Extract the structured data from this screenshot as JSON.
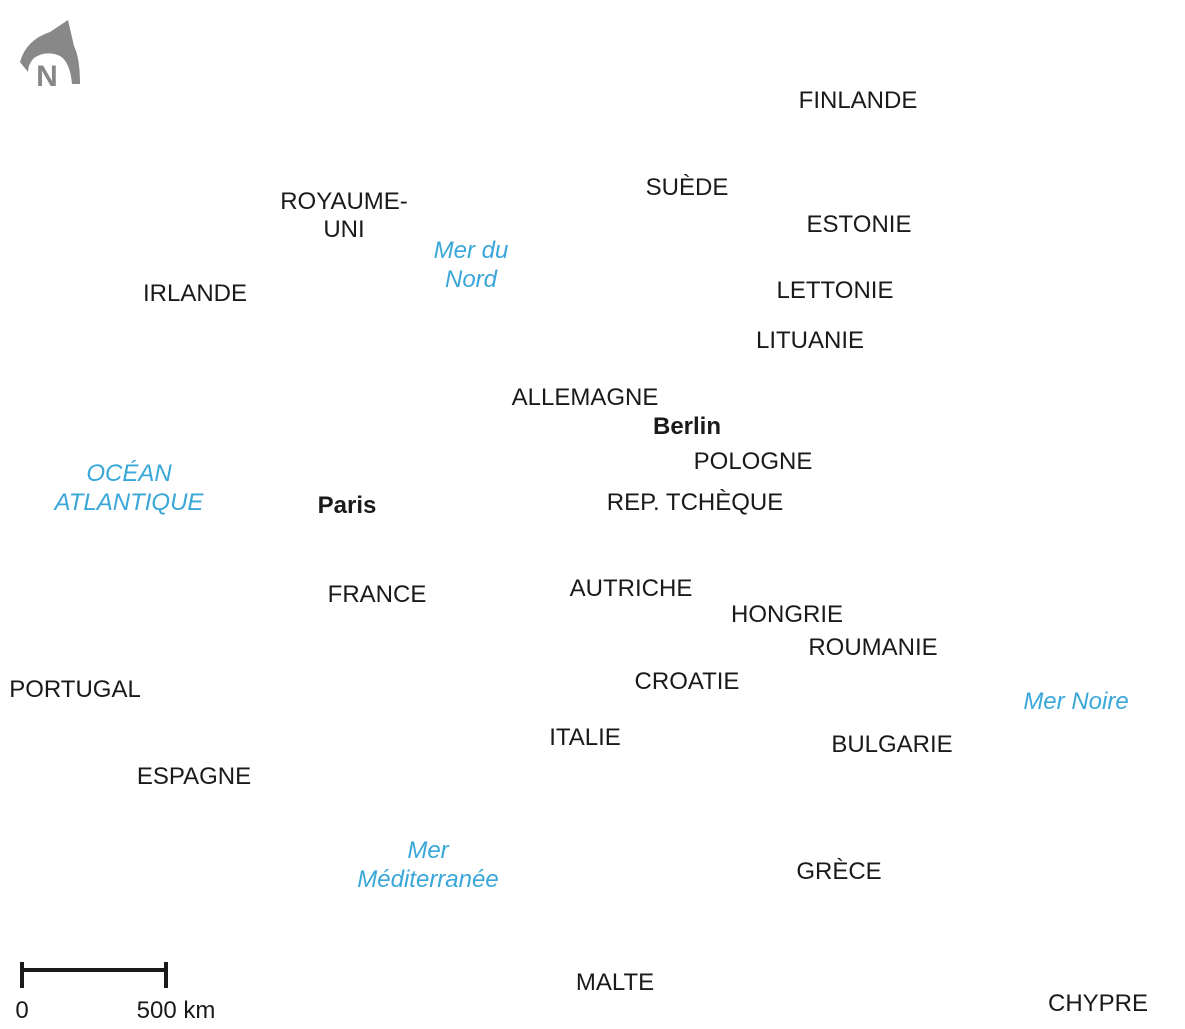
{
  "compass": "N",
  "countries": [
    "FINLANDE",
    "SUÈDE",
    [
      "ROYAUME-",
      "UNI"
    ],
    "ESTONIE",
    "IRLANDE",
    "LETTONIE",
    "LITUANIE",
    "ALLEMAGNE",
    "POLOGNE",
    "REP. TCHÈQUE",
    "FRANCE",
    "AUTRICHE",
    "HONGRIE",
    "ROUMANIE",
    "CROATIE",
    "PORTUGAL",
    "ITALIE",
    "BULGARIE",
    "ESPAGNE",
    "GRÈCE",
    "MALTE",
    "CHYPRE"
  ],
  "capitals": [
    "Berlin",
    "Paris"
  ],
  "seas": [
    [
      "Mer du",
      "Nord"
    ],
    [
      "OCÉAN",
      "ATLANTIQUE"
    ],
    [
      "Mer Noire"
    ],
    [
      "Mer",
      "Méditerranée"
    ]
  ],
  "scale": {
    "start": "0",
    "end": "500 km"
  }
}
